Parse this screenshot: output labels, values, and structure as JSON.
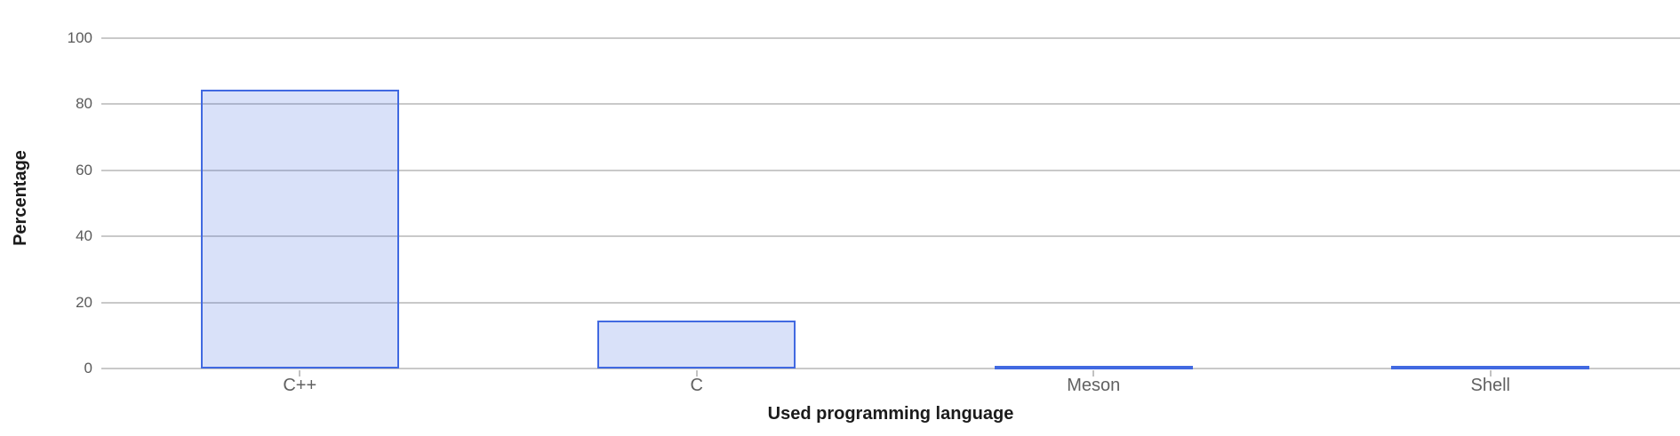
{
  "chart_data": {
    "type": "bar",
    "xlabel": "Used programming language",
    "ylabel": "Percentage",
    "categories": [
      "C++",
      "C",
      "Meson",
      "Shell"
    ],
    "values": [
      84.5,
      14.4,
      0.5,
      0.5
    ],
    "ylim": [
      0,
      100
    ],
    "yticks": [
      0,
      20,
      40,
      60,
      80,
      100
    ],
    "grid": true,
    "legend": "none",
    "colors": {
      "bar_border": "#4169e1",
      "bar_fill": "rgba(65,105,225,0.2)",
      "gridline": "#c9c9c9",
      "y_tick_label": "#5a5a5a",
      "x_tick_label": "#616161",
      "x_tick_mark": "#c2c2c2",
      "axis_title": "#1b1b1b",
      "background": "#ffffff"
    }
  }
}
